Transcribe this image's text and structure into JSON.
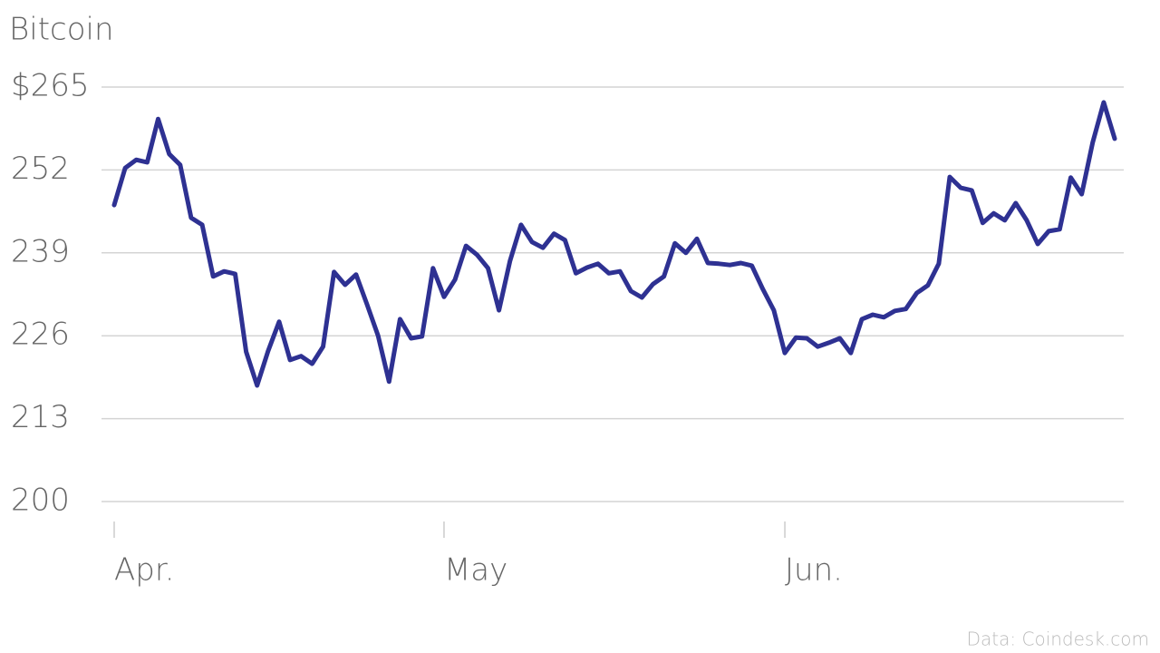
{
  "chart_data": {
    "type": "line",
    "title": "Bitcoin",
    "source": "Data: Coindesk.com",
    "categories": [
      "Apr.",
      null,
      null,
      null,
      null,
      null,
      null,
      null,
      null,
      null,
      null,
      null,
      null,
      null,
      null,
      null,
      null,
      null,
      null,
      null,
      null,
      null,
      null,
      null,
      null,
      null,
      null,
      null,
      null,
      null,
      "May",
      null,
      null,
      null,
      null,
      null,
      null,
      null,
      null,
      null,
      null,
      null,
      null,
      null,
      null,
      null,
      null,
      null,
      null,
      null,
      null,
      null,
      null,
      null,
      null,
      null,
      null,
      null,
      null,
      null,
      null,
      "Jun.",
      null,
      null,
      null,
      null,
      null,
      null,
      null,
      null,
      null,
      null,
      null,
      null,
      null,
      null,
      null,
      null,
      null,
      null,
      null,
      null,
      null,
      null,
      null,
      null,
      null,
      null,
      null,
      null,
      null,
      null
    ],
    "series": [
      {
        "name": "Bitcoin",
        "color": "#2e3192",
        "values": [
          246.5,
          252.3,
          253.6,
          253.2,
          260.0,
          254.5,
          252.8,
          244.5,
          243.4,
          235.3,
          236.1,
          235.7,
          223.5,
          218.2,
          223.6,
          228.2,
          222.2,
          222.8,
          221.6,
          224.3,
          236.0,
          234.0,
          235.6,
          230.9,
          226.0,
          218.8,
          228.6,
          225.6,
          225.9,
          236.6,
          232.1,
          234.8,
          240.1,
          238.7,
          236.6,
          230.0,
          237.7,
          243.4,
          240.7,
          239.8,
          242.0,
          241.0,
          235.8,
          236.7,
          237.3,
          235.8,
          236.1,
          233.0,
          232.0,
          234.1,
          235.3,
          240.5,
          239.0,
          241.2,
          237.4,
          237.3,
          237.1,
          237.4,
          237.0,
          233.3,
          230.0,
          223.3,
          225.7,
          225.6,
          224.3,
          224.9,
          225.6,
          223.3,
          228.6,
          229.3,
          228.9,
          229.9,
          230.2,
          232.7,
          233.9,
          237.3,
          250.9,
          249.2,
          248.8,
          243.7,
          245.2,
          244.1,
          246.8,
          244.1,
          240.4,
          242.4,
          242.7,
          250.8,
          248.2,
          256.3,
          262.6,
          256.9
        ]
      }
    ],
    "ylim": [
      200,
      265
    ],
    "yticks": [
      200,
      213,
      226,
      239,
      252,
      {
        "value": 265,
        "label": "$265"
      }
    ],
    "grid": true
  }
}
